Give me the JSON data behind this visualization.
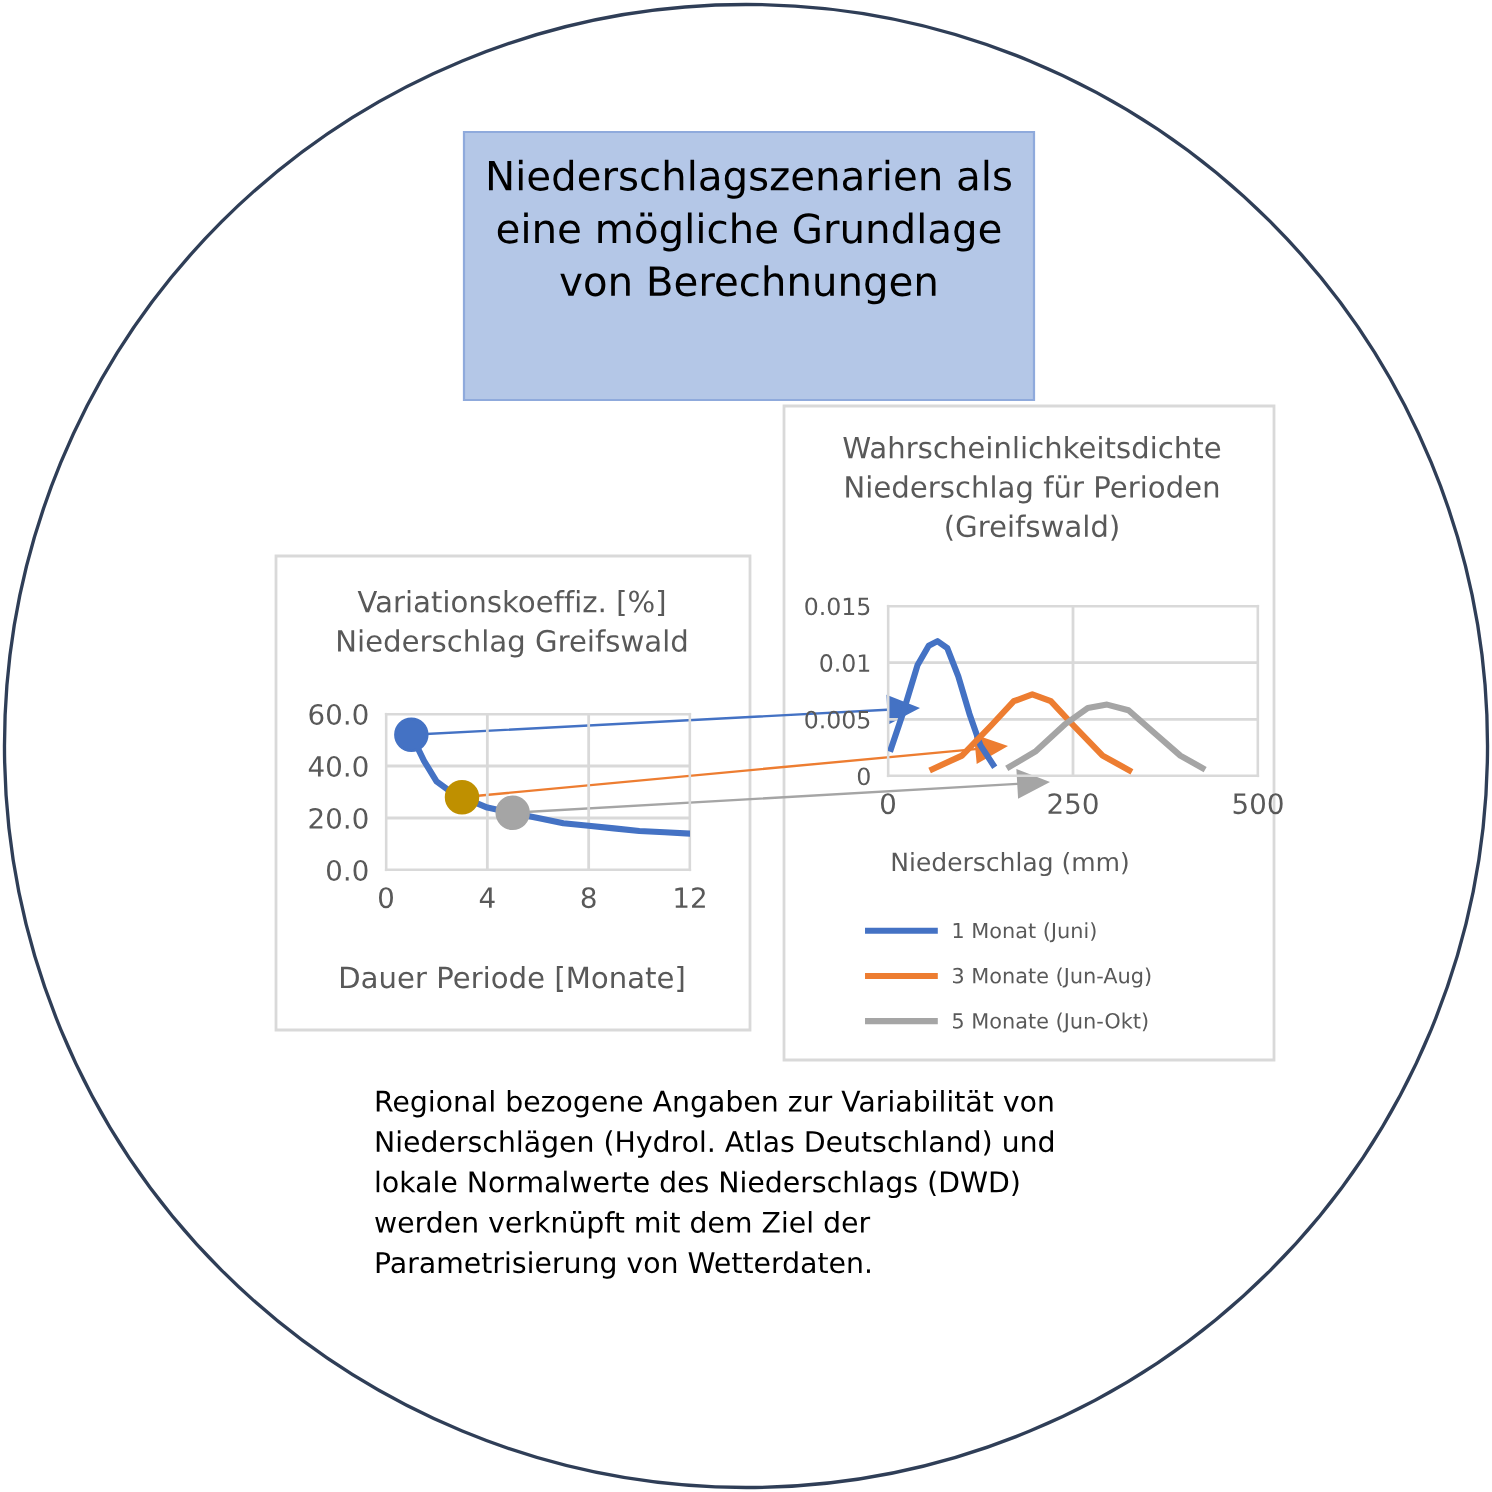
{
  "chart_data": [
    {
      "type": "line",
      "title": "Variationskoeffiz. [%]\nNiederschlag Greifswald",
      "xlabel": "Dauer Periode [Monate]",
      "annotations": [
        "Niederschlagszenarien als\neine mögliche Grundlage\nvon Berechnungen",
        "Regional bezogene Angaben zur Variabilität von\nNiederschlägen (Hydrol. Atlas Deutschland) und\nlokale Normalwerte des Niederschlags (DWD)\nwerden verknüpft mit dem Ziel der\nParametrisierung von Wetterdaten."
      ],
      "series": [
        {
          "type": "line",
          "color": "#4472c4",
          "marker": "none",
          "x": [
            1,
            1.5,
            2,
            2.5,
            3.5,
            4,
            4.5,
            5.5,
            6,
            7,
            8,
            9,
            10,
            11,
            12
          ],
          "values": [
            52,
            42,
            34,
            30.5,
            26,
            24,
            23,
            21,
            20,
            18,
            17,
            16,
            15,
            14.5,
            14
          ]
        },
        {
          "type": "scatter",
          "marker": "circle",
          "colors": [
            "#4472c4",
            "#bf9000",
            "#a5a5a5"
          ],
          "x": [
            1,
            3,
            5
          ],
          "values": [
            52,
            28,
            22
          ]
        }
      ],
      "xlim": [
        0,
        12
      ],
      "xticks": [
        0,
        4,
        8,
        12
      ],
      "ylim": [
        0,
        60
      ],
      "yticks": [
        {
          "value": 0,
          "label": "0.0"
        },
        {
          "value": 20,
          "label": "20.0"
        },
        {
          "value": 40,
          "label": "40.0"
        },
        {
          "value": 60,
          "label": "60.0"
        }
      ],
      "grid": true,
      "legend": false
    },
    {
      "type": "line",
      "title": "Wahrscheinlichkeitsdichte\nNiederschlag für Perioden\n(Greifswald)",
      "xlabel": "Niederschlag (mm)",
      "series": [
        {
          "name": "1 Monat (Juni)",
          "color": "#4472c4",
          "x": [
            4,
            20,
            40,
            55,
            67,
            80,
            95,
            110,
            125,
            142
          ],
          "values": [
            0.0024,
            0.0055,
            0.0098,
            0.0115,
            0.0119,
            0.0113,
            0.0088,
            0.0055,
            0.0027,
            0.001
          ]
        },
        {
          "name": "3 Monate (Jun-Aug)",
          "color": "#ed7d31",
          "x": [
            60,
            100,
            140,
            170,
            195,
            220,
            250,
            290,
            326
          ],
          "values": [
            0.0006,
            0.0018,
            0.0045,
            0.0066,
            0.0072,
            0.0066,
            0.0045,
            0.0018,
            0.0005
          ]
        },
        {
          "name": "5 Monate (Jun-Okt)",
          "color": "#a5a5a5",
          "x": [
            164,
            200,
            240,
            270,
            296,
            325,
            360,
            395,
            425
          ],
          "values": [
            0.0008,
            0.0022,
            0.0046,
            0.006,
            0.0063,
            0.0058,
            0.0038,
            0.0018,
            0.0007
          ]
        }
      ],
      "xlim": [
        0,
        500
      ],
      "xticks": [
        0,
        250,
        500
      ],
      "ylim": [
        0,
        0.015
      ],
      "yticks": [
        0,
        0.005,
        0.01,
        0.015
      ],
      "grid": true,
      "legend": "bottom"
    }
  ]
}
